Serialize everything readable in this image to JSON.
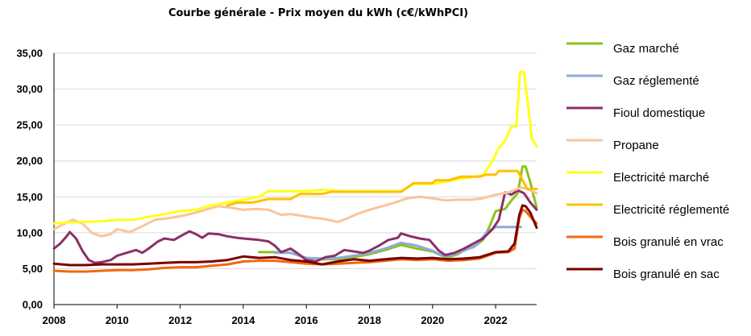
{
  "chart_data": {
    "type": "line",
    "title": "Courbe générale - Prix moyen du kWh (c€/kWhPCI)",
    "xlabel": "",
    "ylabel": "",
    "xlim": [
      2008,
      2023.3
    ],
    "ylim": [
      0,
      35
    ],
    "x_ticks": [
      "2008",
      "2010",
      "2012",
      "2014",
      "2016",
      "2018",
      "2020",
      "2022"
    ],
    "y_ticks": [
      "0,00",
      "5,00",
      "10,00",
      "15,00",
      "20,00",
      "25,00",
      "30,00",
      "35,00"
    ],
    "grid": "horizontal",
    "legend_position": "right",
    "series": [
      {
        "name": "Gaz marché",
        "color": "#8dc21f",
        "points": [
          [
            2014.5,
            7.3
          ],
          [
            2015.0,
            7.3
          ],
          [
            2015.5,
            7.2
          ],
          [
            2016.0,
            6.5
          ],
          [
            2016.5,
            6.3
          ],
          [
            2017.0,
            6.3
          ],
          [
            2017.5,
            6.6
          ],
          [
            2018.0,
            7.0
          ],
          [
            2018.5,
            7.6
          ],
          [
            2019.0,
            8.3
          ],
          [
            2019.5,
            7.8
          ],
          [
            2020.0,
            7.4
          ],
          [
            2020.3,
            6.8
          ],
          [
            2020.5,
            6.6
          ],
          [
            2020.8,
            7.0
          ],
          [
            2021.0,
            7.6
          ],
          [
            2021.3,
            8.0
          ],
          [
            2021.6,
            9.0
          ],
          [
            2021.8,
            10.8
          ],
          [
            2022.0,
            13.0
          ],
          [
            2022.3,
            13.3
          ],
          [
            2022.5,
            14.5
          ],
          [
            2022.7,
            15.5
          ],
          [
            2022.85,
            19.2
          ],
          [
            2022.95,
            19.2
          ],
          [
            2023.1,
            17.0
          ],
          [
            2023.2,
            15.2
          ],
          [
            2023.3,
            13.5
          ]
        ]
      },
      {
        "name": "Gaz réglementé",
        "color": "#8eaadb",
        "points": [
          [
            2015.0,
            7.2
          ],
          [
            2015.5,
            7.2
          ],
          [
            2016.0,
            6.5
          ],
          [
            2016.5,
            6.4
          ],
          [
            2017.0,
            6.5
          ],
          [
            2017.5,
            6.8
          ],
          [
            2018.0,
            7.2
          ],
          [
            2018.5,
            7.8
          ],
          [
            2019.0,
            8.6
          ],
          [
            2019.5,
            8.2
          ],
          [
            2020.0,
            7.5
          ],
          [
            2020.3,
            6.8
          ],
          [
            2020.6,
            6.9
          ],
          [
            2021.0,
            7.5
          ],
          [
            2021.4,
            8.3
          ],
          [
            2021.7,
            10.0
          ],
          [
            2022.0,
            10.8
          ],
          [
            2022.5,
            10.8
          ],
          [
            2022.8,
            10.8
          ]
        ]
      },
      {
        "name": "Fioul domestique",
        "color": "#8a3068",
        "points": [
          [
            2008.0,
            7.8
          ],
          [
            2008.2,
            8.5
          ],
          [
            2008.4,
            9.5
          ],
          [
            2008.5,
            10.1
          ],
          [
            2008.7,
            9.2
          ],
          [
            2008.9,
            7.5
          ],
          [
            2009.1,
            6.2
          ],
          [
            2009.3,
            5.8
          ],
          [
            2009.5,
            5.9
          ],
          [
            2009.8,
            6.2
          ],
          [
            2010.0,
            6.8
          ],
          [
            2010.3,
            7.2
          ],
          [
            2010.6,
            7.6
          ],
          [
            2010.8,
            7.2
          ],
          [
            2011.0,
            7.8
          ],
          [
            2011.3,
            8.8
          ],
          [
            2011.5,
            9.2
          ],
          [
            2011.8,
            9.0
          ],
          [
            2012.0,
            9.5
          ],
          [
            2012.3,
            10.2
          ],
          [
            2012.5,
            9.8
          ],
          [
            2012.7,
            9.3
          ],
          [
            2012.9,
            9.9
          ],
          [
            2013.2,
            9.8
          ],
          [
            2013.5,
            9.5
          ],
          [
            2013.8,
            9.3
          ],
          [
            2014.0,
            9.2
          ],
          [
            2014.5,
            9.0
          ],
          [
            2014.8,
            8.8
          ],
          [
            2015.0,
            8.2
          ],
          [
            2015.2,
            7.3
          ],
          [
            2015.5,
            7.8
          ],
          [
            2015.7,
            7.2
          ],
          [
            2016.0,
            6.2
          ],
          [
            2016.3,
            6.0
          ],
          [
            2016.6,
            6.6
          ],
          [
            2016.9,
            6.8
          ],
          [
            2017.2,
            7.6
          ],
          [
            2017.5,
            7.4
          ],
          [
            2017.8,
            7.2
          ],
          [
            2018.0,
            7.5
          ],
          [
            2018.3,
            8.2
          ],
          [
            2018.6,
            9.0
          ],
          [
            2018.9,
            9.3
          ],
          [
            2019.0,
            9.9
          ],
          [
            2019.3,
            9.5
          ],
          [
            2019.6,
            9.2
          ],
          [
            2019.9,
            9.0
          ],
          [
            2020.2,
            7.5
          ],
          [
            2020.4,
            6.9
          ],
          [
            2020.7,
            7.2
          ],
          [
            2021.0,
            7.8
          ],
          [
            2021.3,
            8.5
          ],
          [
            2021.6,
            9.2
          ],
          [
            2021.9,
            10.5
          ],
          [
            2022.1,
            11.8
          ],
          [
            2022.3,
            15.6
          ],
          [
            2022.5,
            15.3
          ],
          [
            2022.7,
            15.9
          ],
          [
            2022.9,
            15.5
          ],
          [
            2023.1,
            14.2
          ],
          [
            2023.3,
            13.2
          ]
        ]
      },
      {
        "name": "Propane",
        "color": "#f9c49b",
        "points": [
          [
            2008.0,
            10.5
          ],
          [
            2008.3,
            11.2
          ],
          [
            2008.6,
            11.8
          ],
          [
            2008.9,
            11.3
          ],
          [
            2009.2,
            10.0
          ],
          [
            2009.5,
            9.5
          ],
          [
            2009.8,
            9.8
          ],
          [
            2010.0,
            10.5
          ],
          [
            2010.4,
            10.1
          ],
          [
            2010.8,
            10.9
          ],
          [
            2011.2,
            11.8
          ],
          [
            2011.6,
            12.0
          ],
          [
            2012.0,
            12.3
          ],
          [
            2012.4,
            12.7
          ],
          [
            2012.8,
            13.2
          ],
          [
            2013.2,
            13.7
          ],
          [
            2013.6,
            13.5
          ],
          [
            2014.0,
            13.2
          ],
          [
            2014.4,
            13.3
          ],
          [
            2014.8,
            13.2
          ],
          [
            2015.2,
            12.5
          ],
          [
            2015.5,
            12.6
          ],
          [
            2015.8,
            12.4
          ],
          [
            2016.2,
            12.1
          ],
          [
            2016.6,
            11.9
          ],
          [
            2017.0,
            11.5
          ],
          [
            2017.3,
            12.0
          ],
          [
            2017.6,
            12.6
          ],
          [
            2018.0,
            13.2
          ],
          [
            2018.4,
            13.7
          ],
          [
            2018.8,
            14.2
          ],
          [
            2019.2,
            14.8
          ],
          [
            2019.6,
            15.0
          ],
          [
            2020.0,
            14.8
          ],
          [
            2020.4,
            14.5
          ],
          [
            2020.8,
            14.6
          ],
          [
            2021.2,
            14.6
          ],
          [
            2021.6,
            14.8
          ],
          [
            2022.0,
            15.3
          ],
          [
            2022.4,
            15.6
          ],
          [
            2022.8,
            16.3
          ],
          [
            2023.0,
            16.1
          ],
          [
            2023.3,
            15.5
          ]
        ]
      },
      {
        "name": "Electricité marché",
        "color": "#ffff1a",
        "points": [
          [
            2008.0,
            11.3
          ],
          [
            2008.8,
            11.5
          ],
          [
            2009.5,
            11.6
          ],
          [
            2010.0,
            11.8
          ],
          [
            2010.5,
            11.8
          ],
          [
            2011.0,
            12.2
          ],
          [
            2011.5,
            12.6
          ],
          [
            2012.0,
            13.0
          ],
          [
            2012.5,
            13.2
          ],
          [
            2013.0,
            13.8
          ],
          [
            2013.5,
            14.2
          ],
          [
            2014.0,
            14.6
          ],
          [
            2014.5,
            15.0
          ],
          [
            2014.8,
            15.8
          ],
          [
            2015.5,
            15.8
          ],
          [
            2016.0,
            15.8
          ],
          [
            2016.5,
            16.0
          ],
          [
            2017.0,
            15.8
          ],
          [
            2018.0,
            15.8
          ],
          [
            2019.0,
            15.8
          ],
          [
            2019.4,
            16.8
          ],
          [
            2020.0,
            16.8
          ],
          [
            2020.5,
            17.2
          ],
          [
            2021.0,
            17.6
          ],
          [
            2021.6,
            18.0
          ],
          [
            2021.9,
            20.0
          ],
          [
            2022.1,
            21.8
          ],
          [
            2022.3,
            22.8
          ],
          [
            2022.5,
            24.8
          ],
          [
            2022.65,
            24.8
          ],
          [
            2022.78,
            32.4
          ],
          [
            2022.9,
            32.4
          ],
          [
            2023.05,
            27.0
          ],
          [
            2023.15,
            23.0
          ],
          [
            2023.25,
            22.5
          ],
          [
            2023.3,
            22.0
          ]
        ]
      },
      {
        "name": "Electricité réglementé",
        "color": "#ffc000",
        "points": [
          [
            2013.5,
            13.8
          ],
          [
            2013.8,
            14.2
          ],
          [
            2014.3,
            14.2
          ],
          [
            2014.8,
            14.7
          ],
          [
            2015.5,
            14.7
          ],
          [
            2015.8,
            15.4
          ],
          [
            2016.5,
            15.4
          ],
          [
            2016.8,
            15.7
          ],
          [
            2017.5,
            15.7
          ],
          [
            2018.5,
            15.7
          ],
          [
            2019.0,
            15.7
          ],
          [
            2019.4,
            16.9
          ],
          [
            2020.0,
            16.9
          ],
          [
            2020.1,
            17.3
          ],
          [
            2020.5,
            17.3
          ],
          [
            2020.9,
            17.8
          ],
          [
            2021.5,
            17.8
          ],
          [
            2021.7,
            18.1
          ],
          [
            2022.0,
            18.1
          ],
          [
            2022.1,
            18.6
          ],
          [
            2022.7,
            18.6
          ],
          [
            2023.0,
            16.1
          ],
          [
            2023.3,
            16.1
          ]
        ]
      },
      {
        "name": "Bois granulé en vrac",
        "color": "#f06a10",
        "points": [
          [
            2008.0,
            4.7
          ],
          [
            2008.5,
            4.6
          ],
          [
            2009.0,
            4.6
          ],
          [
            2009.5,
            4.7
          ],
          [
            2010.0,
            4.8
          ],
          [
            2010.5,
            4.8
          ],
          [
            2011.0,
            4.9
          ],
          [
            2011.5,
            5.1
          ],
          [
            2012.0,
            5.2
          ],
          [
            2012.5,
            5.2
          ],
          [
            2013.0,
            5.4
          ],
          [
            2013.5,
            5.6
          ],
          [
            2014.0,
            6.0
          ],
          [
            2014.5,
            6.1
          ],
          [
            2015.0,
            6.1
          ],
          [
            2015.5,
            5.9
          ],
          [
            2016.0,
            5.7
          ],
          [
            2016.5,
            5.6
          ],
          [
            2017.0,
            5.7
          ],
          [
            2017.5,
            5.8
          ],
          [
            2018.0,
            5.9
          ],
          [
            2018.5,
            6.1
          ],
          [
            2019.0,
            6.3
          ],
          [
            2019.5,
            6.2
          ],
          [
            2020.0,
            6.3
          ],
          [
            2020.5,
            6.1
          ],
          [
            2021.0,
            6.2
          ],
          [
            2021.5,
            6.4
          ],
          [
            2022.0,
            7.2
          ],
          [
            2022.4,
            7.3
          ],
          [
            2022.6,
            7.8
          ],
          [
            2022.75,
            12.0
          ],
          [
            2022.85,
            13.2
          ],
          [
            2022.95,
            13.0
          ],
          [
            2023.1,
            12.2
          ],
          [
            2023.3,
            11.3
          ]
        ]
      },
      {
        "name": "Bois granulé en sac",
        "color": "#7a0000",
        "points": [
          [
            2008.0,
            5.7
          ],
          [
            2008.5,
            5.5
          ],
          [
            2009.0,
            5.5
          ],
          [
            2009.5,
            5.6
          ],
          [
            2010.0,
            5.6
          ],
          [
            2010.5,
            5.6
          ],
          [
            2011.0,
            5.7
          ],
          [
            2011.5,
            5.8
          ],
          [
            2012.0,
            5.9
          ],
          [
            2012.5,
            5.9
          ],
          [
            2013.0,
            6.0
          ],
          [
            2013.5,
            6.2
          ],
          [
            2014.0,
            6.7
          ],
          [
            2014.5,
            6.5
          ],
          [
            2015.0,
            6.6
          ],
          [
            2015.5,
            6.2
          ],
          [
            2016.0,
            6.0
          ],
          [
            2016.5,
            5.6
          ],
          [
            2017.0,
            6.0
          ],
          [
            2017.5,
            6.3
          ],
          [
            2018.0,
            6.1
          ],
          [
            2018.5,
            6.3
          ],
          [
            2019.0,
            6.5
          ],
          [
            2019.5,
            6.4
          ],
          [
            2020.0,
            6.5
          ],
          [
            2020.5,
            6.3
          ],
          [
            2021.0,
            6.4
          ],
          [
            2021.5,
            6.6
          ],
          [
            2022.0,
            7.3
          ],
          [
            2022.4,
            7.4
          ],
          [
            2022.6,
            8.5
          ],
          [
            2022.75,
            12.5
          ],
          [
            2022.85,
            13.8
          ],
          [
            2022.95,
            13.7
          ],
          [
            2023.1,
            12.8
          ],
          [
            2023.3,
            10.7
          ]
        ]
      }
    ]
  }
}
